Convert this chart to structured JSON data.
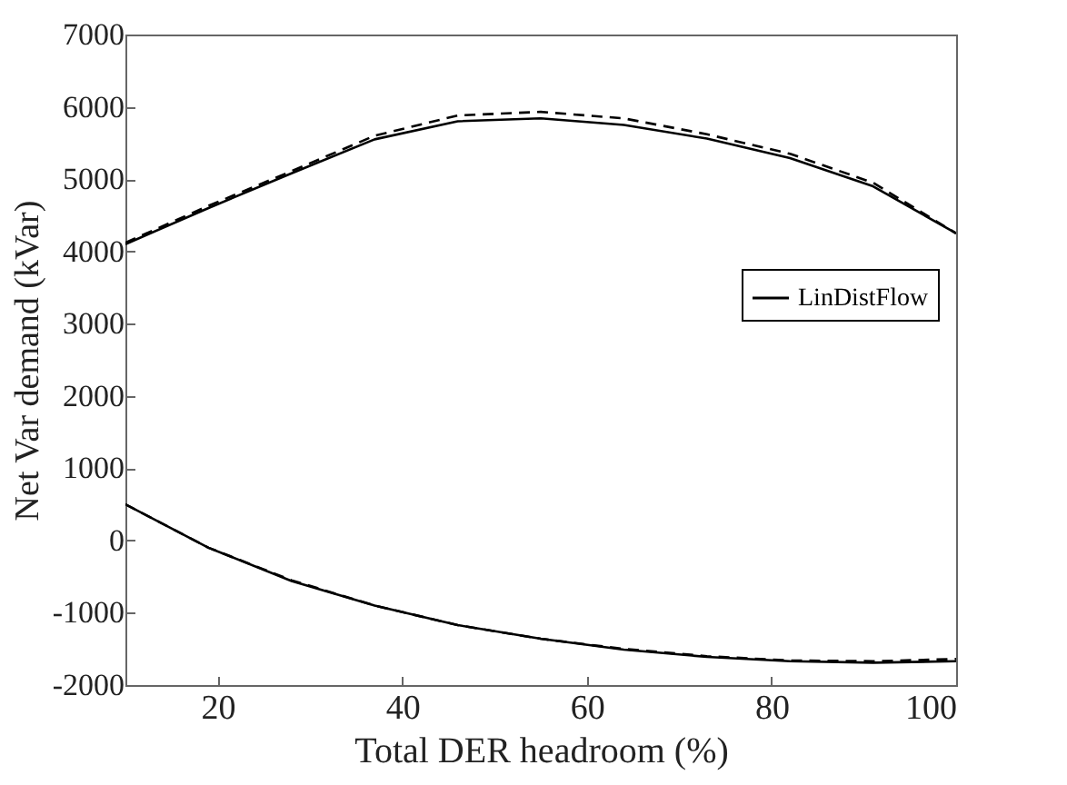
{
  "chart_data": {
    "type": "line",
    "xlabel": "Total DER headroom (%)",
    "ylabel": "Net Var demand (kVar)",
    "x": [
      10,
      19,
      28,
      37,
      46,
      55,
      64,
      73,
      82,
      91,
      100
    ],
    "xlim": [
      10,
      100
    ],
    "xticks": [
      20,
      40,
      60,
      80,
      100
    ],
    "ylim": [
      -2000,
      7000
    ],
    "yticks": [
      -2000,
      -1000,
      0,
      1000,
      2000,
      3000,
      4000,
      5000,
      6000,
      7000
    ],
    "legend": "right",
    "grid": false,
    "marker": "none",
    "series": [
      {
        "name": "LinDistFlow",
        "color": "#000000",
        "line_style": "solid",
        "values": [
          4100,
          4600,
          5080,
          5550,
          5800,
          5840,
          5750,
          5560,
          5290,
          4900,
          4250
        ]
      },
      {
        "color": "#000000",
        "line_style": "solid",
        "values": [
          500,
          -100,
          -560,
          -900,
          -1170,
          -1360,
          -1510,
          -1610,
          -1670,
          -1690,
          -1670
        ]
      },
      {
        "color": "#000000",
        "line_style": "dashed",
        "values": [
          4120,
          4630,
          5110,
          5600,
          5880,
          5930,
          5840,
          5620,
          5350,
          4950,
          4250
        ]
      },
      {
        "color": "#000000",
        "line_style": "dashed",
        "values": [
          500,
          -100,
          -550,
          -900,
          -1170,
          -1360,
          -1500,
          -1600,
          -1660,
          -1670,
          -1640
        ]
      }
    ]
  }
}
